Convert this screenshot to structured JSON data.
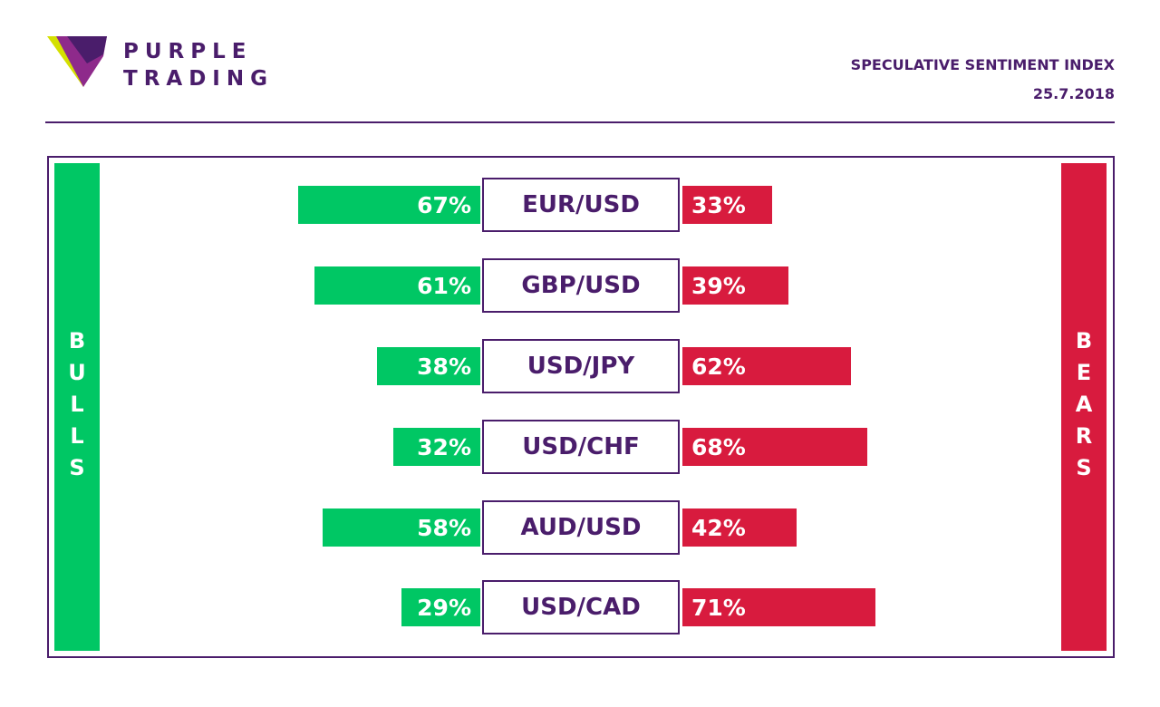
{
  "brand": {
    "line1": "PURPLE",
    "line2": "TRADING",
    "colors": {
      "purple": "#4a1d6b",
      "lime": "#d4e000",
      "magenta": "#8e2a8b"
    }
  },
  "header": {
    "title": "SPECULATIVE SENTIMENT INDEX",
    "date": "25.7.2018"
  },
  "sides": {
    "bulls_label": "BULLS",
    "bears_label": "BEARS",
    "bulls_color": "#00c764",
    "bears_color": "#d81b3e"
  },
  "chart_data": {
    "type": "bar",
    "categories": [
      "EUR/USD",
      "GBP/USD",
      "USD/JPY",
      "USD/CHF",
      "AUD/USD",
      "USD/CAD"
    ],
    "series": [
      {
        "name": "BULLS",
        "values": [
          67,
          61,
          38,
          32,
          58,
          29
        ],
        "labels": [
          "67%",
          "61%",
          "38%",
          "32%",
          "58%",
          "29%"
        ]
      },
      {
        "name": "BEARS",
        "values": [
          33,
          39,
          62,
          68,
          42,
          71
        ],
        "labels": [
          "33%",
          "39%",
          "62%",
          "68%",
          "42%",
          "71%"
        ]
      }
    ],
    "unit": "%",
    "ylim": [
      0,
      100
    ],
    "grid": false
  }
}
